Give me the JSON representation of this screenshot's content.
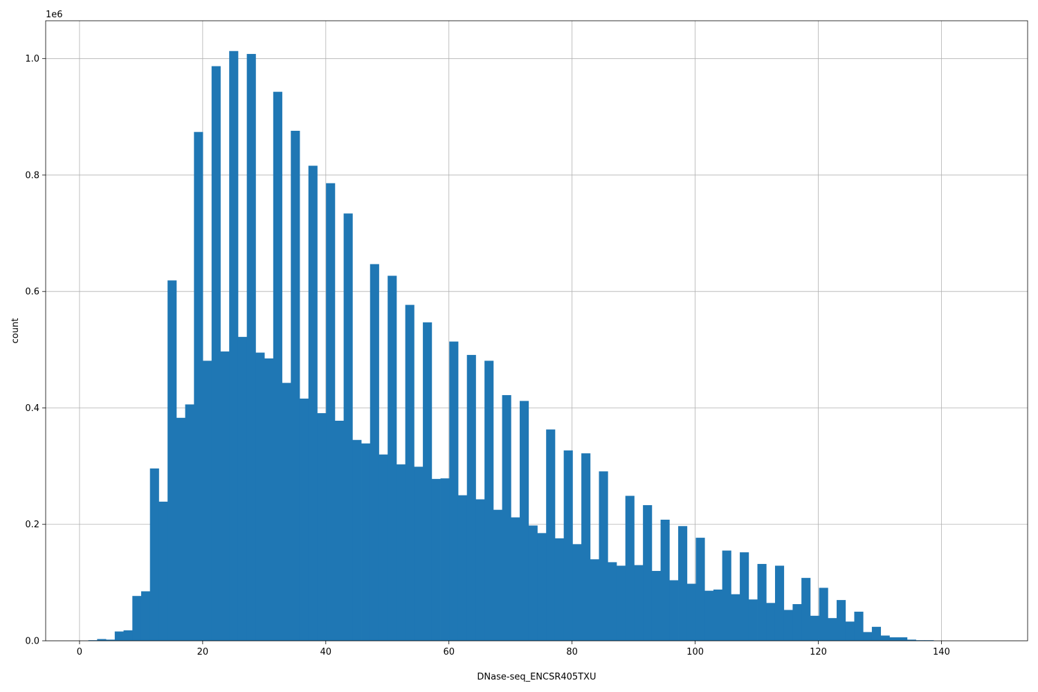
{
  "chart_data": {
    "type": "bar",
    "title": "",
    "xlabel": "DNase-seq_ENCSR405TXU",
    "ylabel": "count",
    "y_offset_label": "1e6",
    "y_scale": 1000000,
    "xlim": [
      -5.5,
      154
    ],
    "ylim": [
      0,
      1.065
    ],
    "x_ticks": [
      0,
      20,
      40,
      60,
      80,
      100,
      120,
      140
    ],
    "x_tick_labels": [
      "0",
      "20",
      "40",
      "60",
      "80",
      "100",
      "120",
      "140"
    ],
    "y_ticks": [
      0,
      0.2,
      0.4,
      0.6,
      0.8,
      1.0
    ],
    "y_tick_labels": [
      "0.0",
      "0.2",
      "0.4",
      "0.6",
      "0.8",
      "1.0"
    ],
    "grid": true,
    "bar_color": "#1f77b4",
    "bin_start": 0,
    "bin_width": 1.43,
    "values": [
      0,
      0.001,
      0.003,
      0.002,
      0.016,
      0.018,
      0.077,
      0.085,
      0.296,
      0.239,
      0.619,
      0.383,
      0.406,
      0.874,
      0.481,
      0.987,
      0.497,
      1.013,
      0.522,
      1.008,
      0.495,
      0.485,
      0.943,
      0.443,
      0.876,
      0.416,
      0.816,
      0.391,
      0.786,
      0.378,
      0.734,
      0.345,
      0.339,
      0.647,
      0.32,
      0.627,
      0.303,
      0.577,
      0.299,
      0.547,
      0.278,
      0.279,
      0.514,
      0.25,
      0.491,
      0.243,
      0.481,
      0.225,
      0.422,
      0.212,
      0.412,
      0.198,
      0.185,
      0.363,
      0.176,
      0.327,
      0.166,
      0.322,
      0.14,
      0.291,
      0.135,
      0.129,
      0.249,
      0.13,
      0.233,
      0.12,
      0.208,
      0.104,
      0.197,
      0.098,
      0.177,
      0.086,
      0.088,
      0.155,
      0.08,
      0.152,
      0.071,
      0.132,
      0.065,
      0.129,
      0.053,
      0.063,
      0.108,
      0.043,
      0.091,
      0.039,
      0.07,
      0.033,
      0.05,
      0.015,
      0.024,
      0.009,
      0.006,
      0.006,
      0.002,
      0.001,
      0.001,
      0,
      0,
      0,
      0,
      0,
      0,
      0
    ]
  }
}
